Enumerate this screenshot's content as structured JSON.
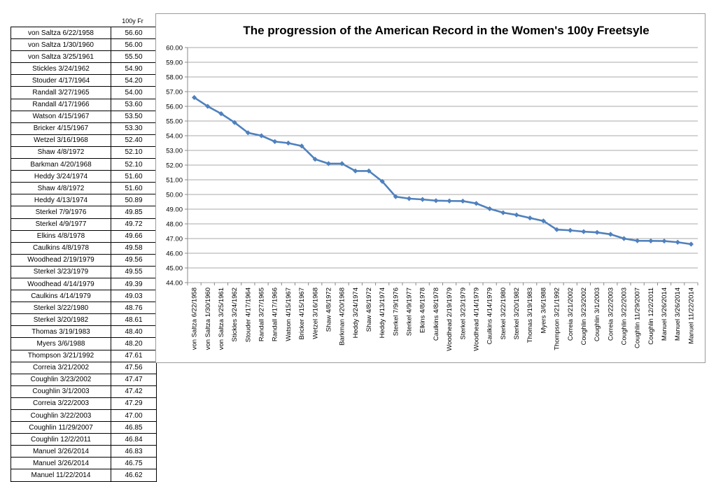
{
  "table": {
    "header": "100y Fr",
    "rows": [
      {
        "label": "von Saltza 6/22/1958",
        "time": "56.60"
      },
      {
        "label": "von Saltza 1/30/1960",
        "time": "56.00"
      },
      {
        "label": "von Saltza 3/25/1961",
        "time": "55.50"
      },
      {
        "label": "Stickles 3/24/1962",
        "time": "54.90"
      },
      {
        "label": "Stouder 4/17/1964",
        "time": "54.20"
      },
      {
        "label": "Randall 3/27/1965",
        "time": "54.00"
      },
      {
        "label": "Randall 4/17/1966",
        "time": "53.60"
      },
      {
        "label": "Watson 4/15/1967",
        "time": "53.50"
      },
      {
        "label": "Bricker 4/15/1967",
        "time": "53.30"
      },
      {
        "label": "Wetzel 3/16/1968",
        "time": "52.40"
      },
      {
        "label": "Shaw 4/8/1972",
        "time": "52.10"
      },
      {
        "label": "Barkman 4/20/1968",
        "time": "52.10"
      },
      {
        "label": "Heddy 3/24/1974",
        "time": "51.60"
      },
      {
        "label": "Shaw 4/8/1972",
        "time": "51.60"
      },
      {
        "label": "Heddy 4/13/1974",
        "time": "50.89"
      },
      {
        "label": "Sterkel 7/9/1976",
        "time": "49.85"
      },
      {
        "label": "Sterkel 4/9/1977",
        "time": "49.72"
      },
      {
        "label": "Elkins 4/8/1978",
        "time": "49.66"
      },
      {
        "label": "Caulkins 4/8/1978",
        "time": "49.58"
      },
      {
        "label": "Woodhead 2/19/1979",
        "time": "49.56"
      },
      {
        "label": "Sterkel 3/23/1979",
        "time": "49.55"
      },
      {
        "label": "Woodhead 4/14/1979",
        "time": "49.39"
      },
      {
        "label": "Caulkins 4/14/1979",
        "time": "49.03"
      },
      {
        "label": "Sterkel 3/22/1980",
        "time": "48.76"
      },
      {
        "label": "Sterkel 3/20/1982",
        "time": "48.61"
      },
      {
        "label": "Thomas 3/19/1983",
        "time": "48.40"
      },
      {
        "label": "Myers 3/6/1988",
        "time": "48.20"
      },
      {
        "label": "Thompson 3/21/1992",
        "time": "47.61"
      },
      {
        "label": "Correia 3/21/2002",
        "time": "47.56"
      },
      {
        "label": "Coughlin 3/23/2002",
        "time": "47.47"
      },
      {
        "label": "Coughlin 3/1/2003",
        "time": "47.42"
      },
      {
        "label": "Correia 3/22/2003",
        "time": "47.29"
      },
      {
        "label": "Coughlin 3/22/2003",
        "time": "47.00"
      },
      {
        "label": "Coughlin 11/29/2007",
        "time": "46.85"
      },
      {
        "label": "Coughlin 12/2/2011",
        "time": "46.84"
      },
      {
        "label": "Manuel 3/26/2014",
        "time": "46.83"
      },
      {
        "label": "Manuel 3/26/2014",
        "time": "46.75"
      },
      {
        "label": "Manuel 11/22/2014",
        "time": "46.62"
      }
    ]
  },
  "chart_data": {
    "type": "line",
    "title": "The progression of the American Record in the Women's 100y Freetsyle",
    "xlabel": "",
    "ylabel": "",
    "ylim": [
      44.0,
      60.0
    ],
    "ystep": 1.0,
    "y_tick_format": 2,
    "grid": true,
    "legend": "none",
    "series_color": "#4f81bd",
    "categories": [
      "von Saltza 6/22/1958",
      "von Saltza 1/30/1960",
      "von Saltza 3/25/1961",
      "Stickles 3/24/1962",
      "Stouder 4/17/1964",
      "Randall 3/27/1965",
      "Randall 4/17/1966",
      "Watson 4/15/1967",
      "Bricker 4/15/1967",
      "Wetzel 3/16/1968",
      "Shaw 4/8/1972",
      "Barkman 4/20/1968",
      "Heddy 3/24/1974",
      "Shaw 4/8/1972",
      "Heddy 4/13/1974",
      "Sterkel 7/9/1976",
      "Sterkel 4/9/1977",
      "Elkins 4/8/1978",
      "Caulkins 4/8/1978",
      "Woodhead 2/19/1979",
      "Sterkel 3/23/1979",
      "Woodhead 4/14/1979",
      "Caulkins 4/14/1979",
      "Sterkel 3/22/1980",
      "Sterkel 3/20/1982",
      "Thomas 3/19/1983",
      "Myers 3/6/1988",
      "Thompson 3/21/1992",
      "Correia 3/21/2002",
      "Coughlin 3/23/2002",
      "Coughlin 3/1/2003",
      "Correia 3/22/2003",
      "Coughlin 3/22/2003",
      "Coughlin 11/29/2007",
      "Coughlin 12/2/2011",
      "Manuel 3/26/2014",
      "Manuel 3/26/2014",
      "Manuel 11/22/2014"
    ],
    "series": [
      {
        "values": [
          56.6,
          56.0,
          55.5,
          54.9,
          54.2,
          54.0,
          53.6,
          53.5,
          53.3,
          52.4,
          52.1,
          52.1,
          51.6,
          51.6,
          50.89,
          49.85,
          49.72,
          49.66,
          49.58,
          49.56,
          49.55,
          49.39,
          49.03,
          48.76,
          48.61,
          48.4,
          48.2,
          47.61,
          47.56,
          47.47,
          47.42,
          47.29,
          47.0,
          46.85,
          46.84,
          46.83,
          46.75,
          46.62
        ]
      }
    ]
  }
}
